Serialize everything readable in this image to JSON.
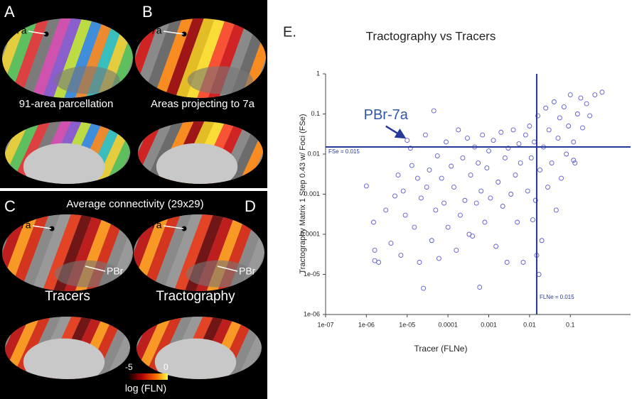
{
  "figure_panels": {
    "labels": [
      "A",
      "B",
      "C",
      "D"
    ],
    "area_7a": "7a",
    "pbr": "PBr",
    "captions": [
      "91-area parcellation",
      "Areas projecting to 7a",
      "Average connectivity (29x29)",
      "Tracers",
      "Tractography"
    ],
    "colorbar": {
      "min": -5,
      "max": 0,
      "label": "log (FLN)"
    }
  },
  "chart_data": {
    "type": "scatter",
    "panel_label": "E.",
    "title": "Tractography vs Tracers",
    "x_label": "Tracer (FLNe)",
    "y_label": "Tractography Matrix 1 Step 0.43 w/ Foci (FSe)",
    "x_log": true,
    "y_log": true,
    "color": "#5b5bd0",
    "line_color": "#26389a",
    "xlim": [
      1e-07,
      3
    ],
    "ylim": [
      1e-06,
      1
    ],
    "xticks": [
      {
        "value": 1e-07,
        "label": "1e-07"
      },
      {
        "value": 1e-06,
        "label": "1e-06"
      },
      {
        "value": 1e-05,
        "label": "1e-05"
      },
      0.0001,
      0.001,
      0.01,
      0.1
    ],
    "yticks": [
      {
        "value": 1e-06,
        "label": "1e-06"
      },
      {
        "value": 1e-05,
        "label": "1e-05"
      },
      0.0001,
      0.001,
      0.01,
      0.1,
      1
    ],
    "hline": {
      "value": 0.015,
      "label": "FSe = 0.015"
    },
    "vline": {
      "value": 0.015,
      "label": "FLNe = 0.015"
    },
    "annotation": {
      "text": "PBr-7a",
      "x": 1e-05,
      "y": 0.022
    },
    "x": [
      1e-06,
      1.5e-06,
      1.6e-06,
      1.6e-06,
      2e-06,
      3e-06,
      4e-06,
      5e-06,
      6e-06,
      7e-06,
      8e-06,
      9e-06,
      1e-05,
      1.2e-05,
      1.3e-05,
      1.5e-05,
      1.8e-05,
      2e-05,
      2.2e-05,
      2.5e-05,
      2.8e-05,
      3e-05,
      3.5e-05,
      4e-05,
      4.5e-05,
      5e-05,
      5.5e-05,
      6e-05,
      7e-05,
      8e-05,
      9e-05,
      0.0001,
      0.00012,
      0.00014,
      0.00016,
      0.00018,
      0.0002,
      0.00023,
      0.00026,
      0.0003,
      0.00033,
      0.00036,
      0.0004,
      0.00045,
      0.0005,
      0.00055,
      0.0006,
      0.00065,
      0.0007,
      0.0008,
      0.0009,
      0.001,
      0.0011,
      0.0013,
      0.0015,
      0.0017,
      0.002,
      0.0022,
      0.0025,
      0.0028,
      0.003,
      0.0035,
      0.004,
      0.0045,
      0.005,
      0.0055,
      0.006,
      0.007,
      0.008,
      0.009,
      0.01,
      0.011,
      0.012,
      0.013,
      0.014,
      0.016,
      0.018,
      0.02,
      0.022,
      0.025,
      0.028,
      0.03,
      0.035,
      0.04,
      0.045,
      0.05,
      0.055,
      0.06,
      0.07,
      0.08,
      0.09,
      0.1,
      0.12,
      0.13,
      0.15,
      0.18,
      0.2,
      0.25,
      0.3,
      0.4,
      0.6,
      0.12,
      0.015,
      0.017
    ],
    "values": [
      0.0016,
      0.0002,
      4e-05,
      2.2e-05,
      2e-05,
      0.0004,
      6e-05,
      0.0009,
      0.003,
      3e-05,
      0.0012,
      0.0003,
      0.022,
      0.014,
      0.0052,
      0.00015,
      0.0025,
      2e-05,
      0.0008,
      4.5e-06,
      0.03,
      0.0015,
      0.004,
      7e-05,
      0.12,
      0.0004,
      0.009,
      2.5e-05,
      0.0025,
      0.0006,
      0.02,
      0.00015,
      0.005,
      0.0015,
      4e-05,
      0.04,
      0.0003,
      0.008,
      0.0007,
      0.025,
      0.0001,
      0.003,
      9e-05,
      0.015,
      0.0006,
      0.006,
      4.8e-06,
      0.0012,
      0.03,
      0.0002,
      0.0045,
      0.012,
      0.0008,
      0.022,
      5e-05,
      0.002,
      0.035,
      0.0005,
      0.008,
      2e-05,
      0.014,
      0.001,
      0.04,
      0.003,
      0.0002,
      0.018,
      0.006,
      2e-05,
      0.03,
      0.0012,
      0.05,
      0.008,
      0.00023,
      0.02,
      0.0007,
      0.09,
      0.004,
      7e-05,
      0.015,
      0.14,
      0.0015,
      0.04,
      0.006,
      0.2,
      0.0004,
      0.025,
      0.08,
      0.0025,
      0.15,
      0.01,
      0.05,
      0.3,
      0.02,
      0.006,
      0.1,
      0.25,
      0.045,
      0.18,
      0.09,
      0.3,
      0.35,
      0.007,
      3e-05,
      1e-05
    ]
  }
}
